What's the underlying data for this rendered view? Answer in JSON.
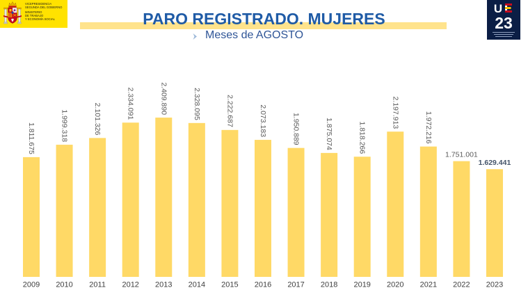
{
  "header": {
    "gov_logo": {
      "lines_top": [
        "VICEPRESIDENCIA",
        "SEGUNDA DEL GOBIERNO"
      ],
      "lines_bottom": [
        "MINISTERIO",
        "DE TRABAJO",
        "Y ECONOMÍA SOCIAL"
      ]
    },
    "eu_logo": {
      "letter_u": "U",
      "letter_e": "E",
      "number": "23"
    }
  },
  "colors": {
    "title": "#1F5BA6",
    "subtitle": "#2F5597",
    "title_band": "#FFE38C",
    "bar": "#FFD966",
    "data_label": "#595959",
    "data_label_highlight": "#44546A",
    "tick_label": "#404040",
    "gov_logo_bg": "#FFE200",
    "eu_logo_bg": "#0B1E45"
  },
  "chart_data": {
    "type": "bar",
    "title": "PARO REGISTRADO. MUJERES",
    "subtitle": "Meses de AGOSTO",
    "categories": [
      "2009",
      "2010",
      "2011",
      "2012",
      "2013",
      "2014",
      "2015",
      "2016",
      "2017",
      "2018",
      "2019",
      "2020",
      "2021",
      "2022",
      "2023"
    ],
    "values": [
      1811675,
      1999318,
      2101326,
      2334091,
      2409890,
      2328095,
      2222687,
      2073183,
      1950889,
      1875074,
      1818266,
      2197913,
      1972216,
      1751001,
      1629441
    ],
    "data_labels": [
      "1.811.675",
      "1.999.318",
      "2.101.326",
      "2.334.091",
      "2.409.890",
      "2.328.095",
      "2.222.687",
      "2.073.183",
      "1.950.889",
      "1.875.074",
      "1.818.266",
      "2.197.913",
      "1.972.216",
      "1.751.001",
      "1.629.441"
    ],
    "xlabel": "",
    "ylabel": "",
    "ylim": [
      0,
      3000000
    ],
    "grid": false,
    "legend": "none"
  }
}
